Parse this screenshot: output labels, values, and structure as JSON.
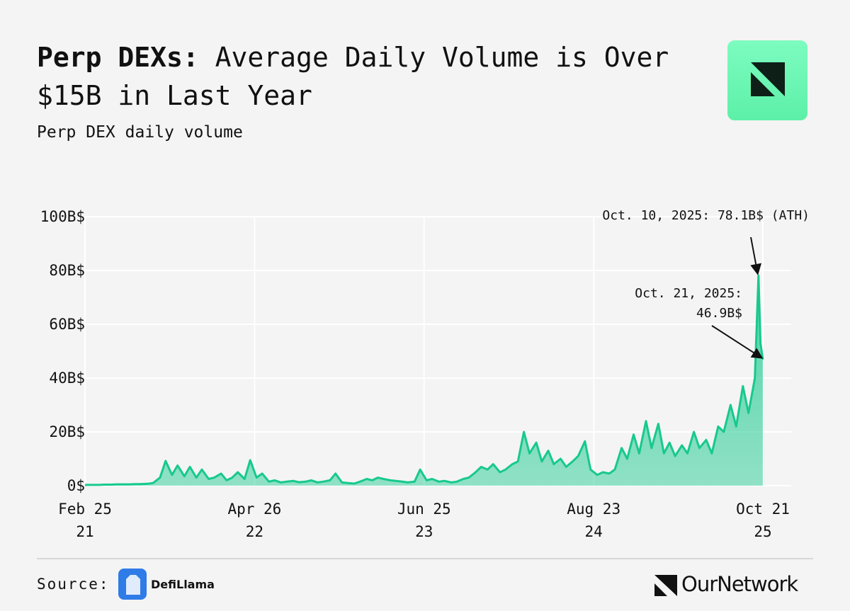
{
  "header": {
    "title": [
      "Perp DEXs:",
      "Average Daily Volume is Over $15B in Last Year"
    ]
  },
  "chart_data": {
    "type": "area",
    "subtitle": "Perp DEX daily volume",
    "color": "#17c98c",
    "grid": true,
    "x": [
      "2021-02-25",
      "2021-03-01",
      "2021-03-15",
      "2021-04-01",
      "2021-04-15",
      "2021-05-01",
      "2021-05-15",
      "2021-06-01",
      "2021-06-15",
      "2021-07-01",
      "2021-07-15",
      "2021-08-01",
      "2021-08-15",
      "2021-09-01",
      "2021-09-15",
      "2021-10-01",
      "2021-10-15",
      "2021-11-01",
      "2021-11-15",
      "2021-12-01",
      "2021-12-15",
      "2022-01-01",
      "2022-01-15",
      "2022-02-01",
      "2022-02-15",
      "2022-03-01",
      "2022-03-15",
      "2022-04-01",
      "2022-04-15",
      "2022-05-01",
      "2022-05-15",
      "2022-06-01",
      "2022-06-15",
      "2022-07-01",
      "2022-07-15",
      "2022-08-01",
      "2022-08-15",
      "2022-09-01",
      "2022-09-15",
      "2022-10-01",
      "2022-10-15",
      "2022-11-01",
      "2022-11-15",
      "2022-12-01",
      "2022-12-15",
      "2023-01-01",
      "2023-01-15",
      "2023-02-01",
      "2023-02-15",
      "2023-03-01",
      "2023-03-15",
      "2023-04-01",
      "2023-04-15",
      "2023-05-01",
      "2023-05-15",
      "2023-06-01",
      "2023-06-15",
      "2023-07-01",
      "2023-07-15",
      "2023-08-01",
      "2023-08-15",
      "2023-09-01",
      "2023-09-15",
      "2023-10-01",
      "2023-10-15",
      "2023-11-01",
      "2023-11-15",
      "2023-12-01",
      "2023-12-15",
      "2024-01-01",
      "2024-01-15",
      "2024-02-01",
      "2024-02-15",
      "2024-03-01",
      "2024-03-15",
      "2024-04-01",
      "2024-04-15",
      "2024-05-01",
      "2024-05-15",
      "2024-06-01",
      "2024-06-15",
      "2024-07-01",
      "2024-07-15",
      "2024-08-01",
      "2024-08-15",
      "2024-09-01",
      "2024-09-15",
      "2024-10-01",
      "2024-10-15",
      "2024-11-01",
      "2024-11-15",
      "2024-12-01",
      "2024-12-15",
      "2025-01-01",
      "2025-01-15",
      "2025-02-01",
      "2025-02-15",
      "2025-03-01",
      "2025-03-15",
      "2025-04-01",
      "2025-04-15",
      "2025-05-01",
      "2025-05-15",
      "2025-06-01",
      "2025-06-15",
      "2025-07-01",
      "2025-07-15",
      "2025-08-01",
      "2025-08-15",
      "2025-09-01",
      "2025-09-15",
      "2025-10-01",
      "2025-10-10",
      "2025-10-15",
      "2025-10-21"
    ],
    "values": [
      0.2,
      0.3,
      0.3,
      0.3,
      0.4,
      0.4,
      0.5,
      0.5,
      0.5,
      0.6,
      0.6,
      0.7,
      1.0,
      3,
      9.2,
      4,
      7.5,
      3.5,
      7,
      3,
      6,
      2.5,
      3,
      4.5,
      2,
      3,
      5,
      2.5,
      9.5,
      3,
      4.5,
      1.5,
      2,
      1.2,
      1.5,
      1.8,
      1.3,
      1.5,
      2,
      1.2,
      1.5,
      2,
      4.5,
      1.2,
      1,
      0.8,
      1.5,
      2.5,
      2,
      3,
      2.5,
      2,
      1.8,
      1.5,
      1.2,
      1.5,
      6,
      2,
      2.5,
      1.5,
      1.8,
      1.2,
      1.5,
      2.5,
      3,
      5,
      7,
      6,
      8,
      5,
      6,
      8,
      9,
      20,
      12,
      16,
      9,
      13,
      8,
      10,
      7,
      9,
      11,
      16.5,
      6,
      4,
      5,
      4.5,
      6,
      14,
      10,
      19,
      12,
      24,
      14,
      23,
      12,
      16,
      11,
      15,
      12,
      20,
      14,
      17,
      12,
      22,
      20,
      30,
      22,
      37,
      27,
      40,
      78.1,
      53,
      46.9
    ],
    "xlim": [
      "2021-02-25",
      "2025-10-21"
    ],
    "xticks": [
      {
        "value": "2021-02-25",
        "label": "Feb 25\n21"
      },
      {
        "value": "2022-04-26",
        "label": "Apr 26\n22"
      },
      {
        "value": "2023-06-25",
        "label": "Jun 25\n23"
      },
      {
        "value": "2024-08-23",
        "label": "Aug 23\n24"
      },
      {
        "value": "2025-10-21",
        "label": "Oct 21\n25"
      }
    ],
    "ylim": [
      0,
      100
    ],
    "yticks": [
      {
        "value": 0,
        "label": "0$"
      },
      {
        "value": 20,
        "label": "20B$"
      },
      {
        "value": 40,
        "label": "40B$"
      },
      {
        "value": 60,
        "label": "60B$"
      },
      {
        "value": 80,
        "label": "80B$"
      },
      {
        "value": 100,
        "label": "100B$"
      }
    ],
    "annotations": [
      {
        "text": "Oct. 10, 2025: 78.1B$ (ATH)",
        "x": "2025-10-10",
        "y": 78.1
      },
      {
        "text": "Oct. 21, 2025:\n46.9B$",
        "x": "2025-10-21",
        "y": 46.9
      }
    ]
  },
  "footer": {
    "source_label": "Source:",
    "source": "DefiLlama",
    "brand": "OurNetwork"
  }
}
